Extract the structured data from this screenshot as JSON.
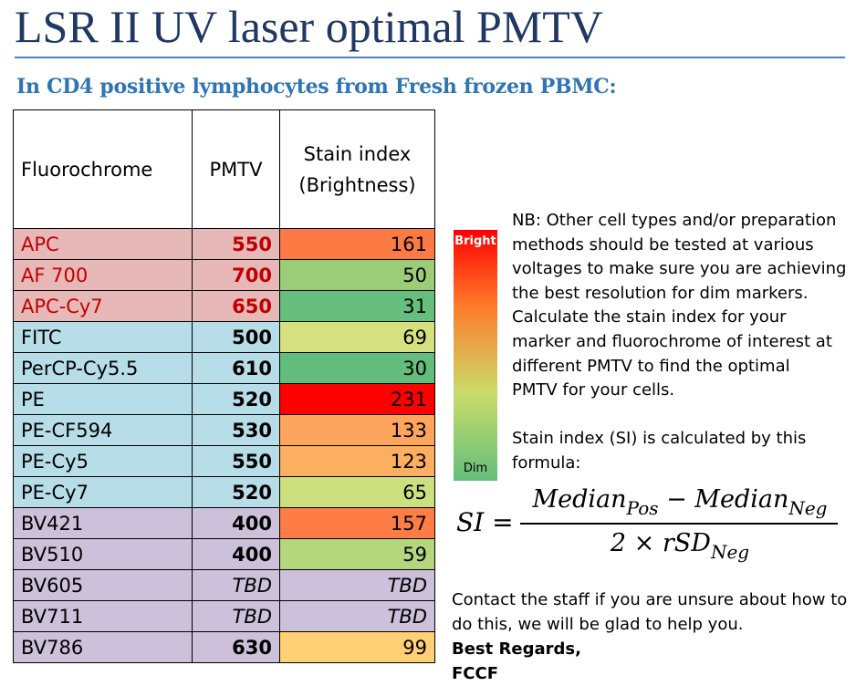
{
  "title": "LSR II UV laser optimal PMTV",
  "subtitle": "In CD4 positive lymphocytes from Fresh frozen PBMC:",
  "table": {
    "headers": {
      "fluorochrome": "Fluorochrome",
      "pmtv": "PMTV",
      "stain_index_line1": "Stain index",
      "stain_index_line2": "(Brightness)"
    },
    "rows": [
      {
        "fluorochrome": "APC",
        "pmtv": "550",
        "stain_index": "161",
        "row_color": "#e6b8b7",
        "text_color": "#c00000",
        "pmtv_color": "#c00000",
        "si_color": "#fe7a45"
      },
      {
        "fluorochrome": "AF 700",
        "pmtv": "700",
        "stain_index": "50",
        "row_color": "#e6b8b7",
        "text_color": "#c00000",
        "pmtv_color": "#c00000",
        "si_color": "#9bcd78"
      },
      {
        "fluorochrome": "APC-Cy7",
        "pmtv": "650",
        "stain_index": "31",
        "row_color": "#e6b8b7",
        "text_color": "#c00000",
        "pmtv_color": "#c00000",
        "si_color": "#66bf7c"
      },
      {
        "fluorochrome": "FITC",
        "pmtv": "500",
        "stain_index": "69",
        "row_color": "#b7dde8",
        "text_color": "#000000",
        "pmtv_color": "#000000",
        "si_color": "#d6e07f"
      },
      {
        "fluorochrome": "PerCP-Cy5.5",
        "pmtv": "610",
        "stain_index": "30",
        "row_color": "#b7dde8",
        "text_color": "#000000",
        "pmtv_color": "#000000",
        "si_color": "#63be7b"
      },
      {
        "fluorochrome": "PE",
        "pmtv": "520",
        "stain_index": "231",
        "row_color": "#b7dde8",
        "text_color": "#000000",
        "pmtv_color": "#000000",
        "si_color": "#ff0000"
      },
      {
        "fluorochrome": "PE-CF594",
        "pmtv": "530",
        "stain_index": "133",
        "row_color": "#b7dde8",
        "text_color": "#000000",
        "pmtv_color": "#000000",
        "si_color": "#fda55d"
      },
      {
        "fluorochrome": "PE-Cy5",
        "pmtv": "550",
        "stain_index": "123",
        "row_color": "#b7dde8",
        "text_color": "#000000",
        "pmtv_color": "#000000",
        "si_color": "#fcaf60"
      },
      {
        "fluorochrome": "PE-Cy7",
        "pmtv": "520",
        "stain_index": "65",
        "row_color": "#b7dde8",
        "text_color": "#000000",
        "pmtv_color": "#000000",
        "si_color": "#cde07f"
      },
      {
        "fluorochrome": "BV421",
        "pmtv": "400",
        "stain_index": "157",
        "row_color": "#ccc0da",
        "text_color": "#000000",
        "pmtv_color": "#000000",
        "si_color": "#fe7c46"
      },
      {
        "fluorochrome": "BV510",
        "pmtv": "400",
        "stain_index": "59",
        "row_color": "#ccc0da",
        "text_color": "#000000",
        "pmtv_color": "#000000",
        "si_color": "#b4d67d"
      },
      {
        "fluorochrome": "BV605",
        "pmtv": "TBD",
        "stain_index": "TBD",
        "row_color": "#ccc0da",
        "text_color": "#000000",
        "pmtv_color": "#000000",
        "si_color": "#ccc0da"
      },
      {
        "fluorochrome": "BV711",
        "pmtv": "TBD",
        "stain_index": "TBD",
        "row_color": "#ccc0da",
        "text_color": "#000000",
        "pmtv_color": "#000000",
        "si_color": "#ccc0da"
      },
      {
        "fluorochrome": "BV786",
        "pmtv": "630",
        "stain_index": "99",
        "row_color": "#ccc0da",
        "text_color": "#000000",
        "pmtv_color": "#000000",
        "si_color": "#ffd074"
      }
    ]
  },
  "legend": {
    "bright_label": "Bright",
    "dim_label": "Dim",
    "colors": [
      "#ff0000",
      "#ff7a2a",
      "#c9dc6a",
      "#63be7b"
    ]
  },
  "note": "NB: Other cell types and/or preparation\nmethods should be tested at various\nvoltages to make sure you are achieving\nthe best resolution for dim markers.\nCalculate the stain index for your\nmarker and fluorochrome of interest at\ndifferent PMTV to find the optimal\nPMTV for your cells.\n\nStain index (SI) is calculated by this\nformula:",
  "formula": {
    "lhs": "SI =",
    "num_a": "Median",
    "num_a_sub": "Pos",
    "num_op": " − ",
    "num_b": "Median",
    "num_b_sub": "Neg",
    "den": "2 × rSD",
    "den_sub": "Neg"
  },
  "contact": {
    "text": "Contact the staff if you are unsure about how to do this, we will be glad to help you.",
    "regards": "Best Regards,",
    "signature": "FCCF"
  }
}
